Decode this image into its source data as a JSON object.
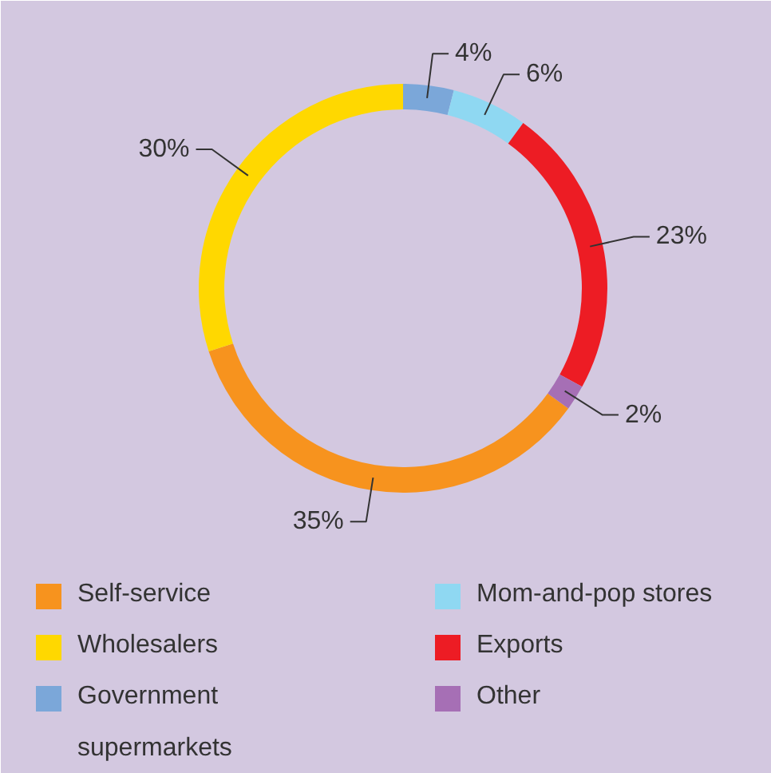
{
  "chart_data": {
    "type": "donut",
    "categories": [
      "Self-service",
      "Wholesalers",
      "Government supermarkets",
      "Mom-and-pop stores",
      "Exports",
      "Other"
    ],
    "values": [
      35,
      30,
      4,
      6,
      23,
      2
    ],
    "value_labels": [
      "35%",
      "30%",
      "4%",
      "6%",
      "23%",
      "2%"
    ],
    "colors": [
      "#f7931e",
      "#ffd800",
      "#7ba7d9",
      "#8fd8f2",
      "#ed1c24",
      "#a66fb5"
    ],
    "legend": "bottom"
  }
}
